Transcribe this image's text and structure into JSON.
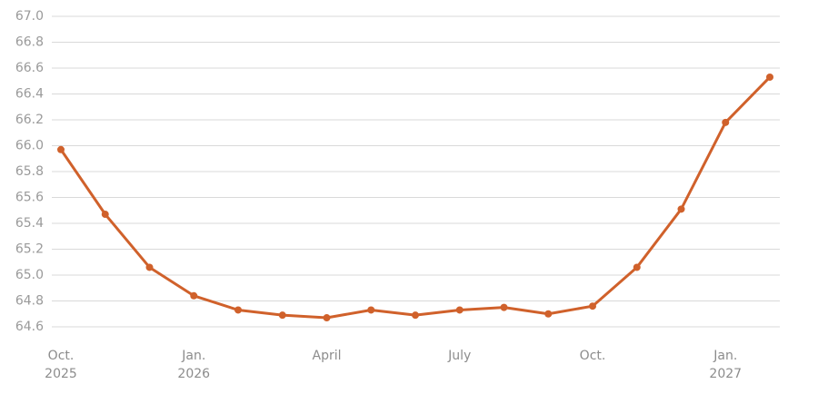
{
  "chart_data": {
    "type": "line",
    "categories": [
      "Oct.\n2025",
      null,
      null,
      "Jan.\n2026",
      null,
      null,
      "April",
      null,
      null,
      "July",
      null,
      null,
      "Oct.",
      null,
      null,
      "Jan.\n2027",
      null
    ],
    "series": [
      {
        "color": "#d0612b",
        "values": [
          65.97,
          65.47,
          65.06,
          64.84,
          64.73,
          64.69,
          64.67,
          64.73,
          64.69,
          64.73,
          64.75,
          64.7,
          64.76,
          65.06,
          65.51,
          66.18,
          66.53
        ]
      }
    ],
    "ylim": [
      64.6,
      67.0
    ],
    "yticks": [
      64.6,
      64.8,
      {
        "value": 65.0,
        "label": "65.0"
      },
      65.2,
      65.4,
      65.6,
      65.8,
      {
        "value": 66.0,
        "label": "66.0"
      },
      66.2,
      66.4,
      66.6,
      66.8,
      {
        "value": 67.0,
        "label": "67.0"
      }
    ],
    "grid": true
  }
}
